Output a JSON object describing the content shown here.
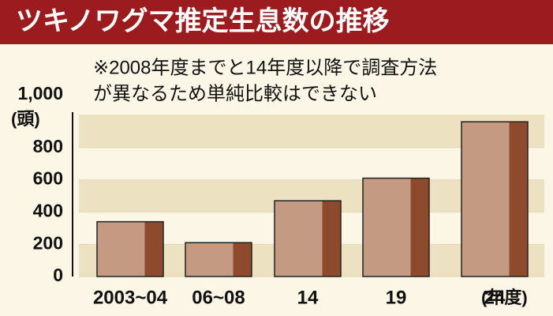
{
  "chart_data": {
    "type": "bar",
    "title": "ツキノワグマ推定生息数の推移",
    "note_lines": [
      "※2008年度までと14年度以降で調査方法",
      "が異なるため単純比較はできない"
    ],
    "y_unit": "(頭)",
    "x_unit": "(年度)",
    "categories": [
      "2003~04",
      "06~08",
      "14",
      "19",
      "24"
    ],
    "values": [
      340,
      210,
      470,
      610,
      960
    ],
    "color": "#c49a82",
    "shade_color": "#8e4a2c",
    "title_color": "#9b1b1e",
    "ylim": [
      0,
      1000
    ],
    "yticks": [
      0,
      200,
      400,
      600,
      800,
      {
        "value": 1000,
        "label": "1,000"
      }
    ],
    "grid": true
  }
}
